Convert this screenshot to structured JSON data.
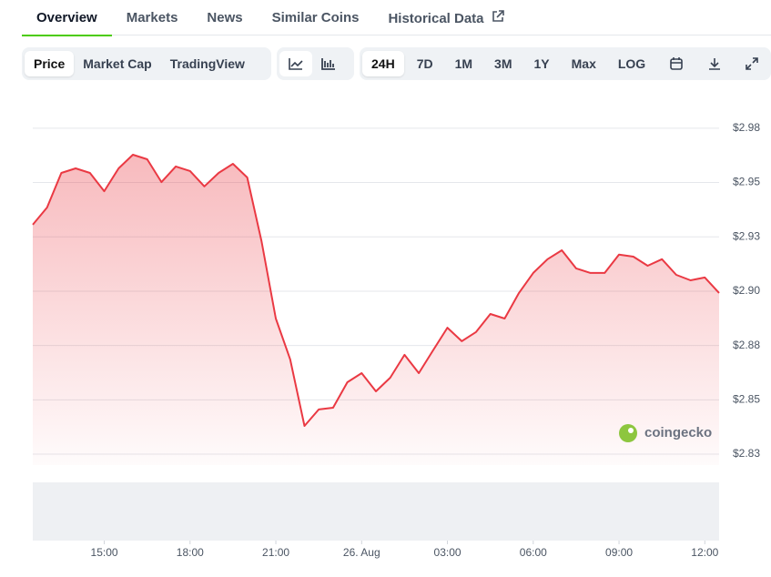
{
  "tabs": [
    "Overview",
    "Markets",
    "News",
    "Similar Coins",
    "Historical Data"
  ],
  "toolbar": {
    "views": [
      "Price",
      "Market Cap",
      "TradingView"
    ],
    "ranges": [
      "24H",
      "7D",
      "1M",
      "3M",
      "1Y",
      "Max",
      "LOG"
    ]
  },
  "chart_data": {
    "type": "line",
    "color": "#ea3943",
    "watermark": "coingecko",
    "grid": true,
    "x": [
      12.5,
      13,
      13.5,
      14,
      14.5,
      15,
      15.5,
      16,
      16.5,
      17,
      17.5,
      18,
      18.5,
      19,
      19.5,
      20,
      20.5,
      21,
      21.5,
      22,
      22.5,
      23,
      23.5,
      24,
      24.5,
      25,
      25.5,
      26,
      26.5,
      27,
      27.5,
      28,
      28.5,
      29,
      29.5,
      30,
      30.5,
      31,
      31.5,
      32,
      32.5,
      33,
      33.5,
      34,
      34.5,
      35,
      35.5,
      36,
      36.5
    ],
    "values": [
      2.9306,
      2.9385,
      2.9544,
      2.9565,
      2.9544,
      2.946,
      2.9565,
      2.9628,
      2.9607,
      2.9502,
      2.9574,
      2.9553,
      2.9482,
      2.9544,
      2.9586,
      2.9523,
      2.923,
      2.8874,
      2.8686,
      2.838,
      2.8456,
      2.8464,
      2.8581,
      2.8623,
      2.8539,
      2.8602,
      2.8707,
      2.8623,
      2.8728,
      2.8832,
      2.877,
      2.8812,
      2.8895,
      2.8874,
      2.8992,
      2.9084,
      2.9147,
      2.9188,
      2.9105,
      2.9084,
      2.9084,
      2.9168,
      2.9159,
      2.9117,
      2.9147,
      2.9075,
      2.905,
      2.9063,
      2.8992
    ],
    "xlim": [
      12.5,
      36.5
    ],
    "xticks": [
      {
        "value": 15,
        "label": "15:00"
      },
      {
        "value": 18,
        "label": "18:00"
      },
      {
        "value": 21,
        "label": "21:00"
      },
      {
        "value": 24,
        "label": "26. Aug"
      },
      {
        "value": 27,
        "label": "03:00"
      },
      {
        "value": 30,
        "label": "06:00"
      },
      {
        "value": 33,
        "label": "09:00"
      },
      {
        "value": 36,
        "label": "12:00"
      }
    ],
    "ylim": [
      2.82,
      2.99
    ],
    "yticks": [
      {
        "value": 2.975,
        "label": "$2.98"
      },
      {
        "value": 2.95,
        "label": "$2.95"
      },
      {
        "value": 2.925,
        "label": "$2.93"
      },
      {
        "value": 2.9,
        "label": "$2.90"
      },
      {
        "value": 2.875,
        "label": "$2.88"
      },
      {
        "value": 2.85,
        "label": "$2.85"
      },
      {
        "value": 2.825,
        "label": "$2.83"
      }
    ]
  }
}
